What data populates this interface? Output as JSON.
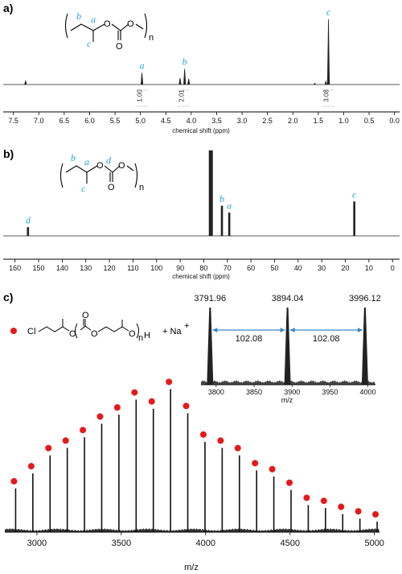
{
  "panels": {
    "a": "a)",
    "b": "b)",
    "c": "c)"
  },
  "chart_data": [
    {
      "type": "line",
      "xlabel": "chemical shift (ppm)",
      "xlim": [
        7.7,
        -0.1
      ],
      "x_ticks": [
        "7.5",
        "7.0",
        "6.5",
        "6.0",
        "5.5",
        "5.0",
        "4.5",
        "4.0",
        "3.5",
        "3.0",
        "2.5",
        "2.0",
        "1.5",
        "1.0",
        "0.5",
        "0.0"
      ],
      "peaks": [
        {
          "x": 7.26,
          "height": 0.06
        },
        {
          "x": 4.97,
          "height": 0.18,
          "label": "a"
        },
        {
          "x": 4.22,
          "height": 0.1
        },
        {
          "x": 4.13,
          "height": 0.24,
          "label": "b"
        },
        {
          "x": 4.05,
          "height": 0.09
        },
        {
          "x": 1.57,
          "height": 0.02
        },
        {
          "x": 1.35,
          "height": 0.05
        },
        {
          "x": 1.3,
          "height": 1.0,
          "label": "c"
        }
      ],
      "integrals": [
        {
          "x": 4.97,
          "value": "1.00"
        },
        {
          "x": 4.15,
          "value": "2.01"
        },
        {
          "x": 1.3,
          "value": "3.08"
        }
      ],
      "structure": {
        "labels": [
          "b",
          "a",
          "c"
        ],
        "subscript": "n",
        "atoms": [
          "O",
          "O",
          "O"
        ]
      }
    },
    {
      "type": "line",
      "xlabel": "chemical shift (ppm)",
      "xlim": [
        165,
        -3
      ],
      "x_ticks": [
        "160",
        "150",
        "140",
        "130",
        "120",
        "110",
        "100",
        "90",
        "80",
        "70",
        "60",
        "50",
        "40",
        "30",
        "20",
        "10",
        "0"
      ],
      "peaks": [
        {
          "x": 154.5,
          "height": 0.1,
          "label": "d"
        },
        {
          "x": 77.0,
          "height": 1.0
        },
        {
          "x": 72.3,
          "height": 0.35,
          "label": "b"
        },
        {
          "x": 69.2,
          "height": 0.27,
          "label": "a"
        },
        {
          "x": 16.2,
          "height": 0.4,
          "label": "c"
        }
      ],
      "structure": {
        "labels": [
          "b",
          "a",
          "d",
          "c"
        ],
        "subscript": "n",
        "atoms": [
          "O",
          "O",
          "O"
        ]
      }
    },
    {
      "type": "bar",
      "xlabel": "m/z",
      "xlim": [
        2810,
        5030
      ],
      "x_ticks": [
        "3000",
        "3500",
        "4000",
        "4500",
        "5000"
      ],
      "peaks_mz": [
        2874,
        2976,
        3078,
        3180,
        3282,
        3384,
        3486,
        3588,
        3690,
        3792,
        3894,
        3996,
        4098,
        4200,
        4302,
        4404,
        4506,
        4608,
        4710,
        4812,
        4914,
        5016
      ],
      "relative_intensity": [
        0.29,
        0.39,
        0.51,
        0.56,
        0.63,
        0.72,
        0.78,
        0.88,
        0.82,
        0.95,
        0.79,
        0.6,
        0.56,
        0.51,
        0.41,
        0.37,
        0.28,
        0.18,
        0.16,
        0.12,
        0.09,
        0.07
      ],
      "legend_text": [
        "Cl",
        "O",
        "O",
        "O",
        "O",
        "n",
        "H",
        "+ Na",
        "+"
      ],
      "inset": {
        "xlabel": "m/z",
        "xlim": [
          3780,
          4010
        ],
        "x_ticks": [
          "3800",
          "3850",
          "3900",
          "3950",
          "4000"
        ],
        "peaks": [
          3791.96,
          3894.04,
          3996.12
        ],
        "peak_labels": [
          "3791.96",
          "3894.04",
          "3996.12"
        ],
        "spacing_labels": [
          "102.08",
          "102.08"
        ]
      }
    }
  ]
}
